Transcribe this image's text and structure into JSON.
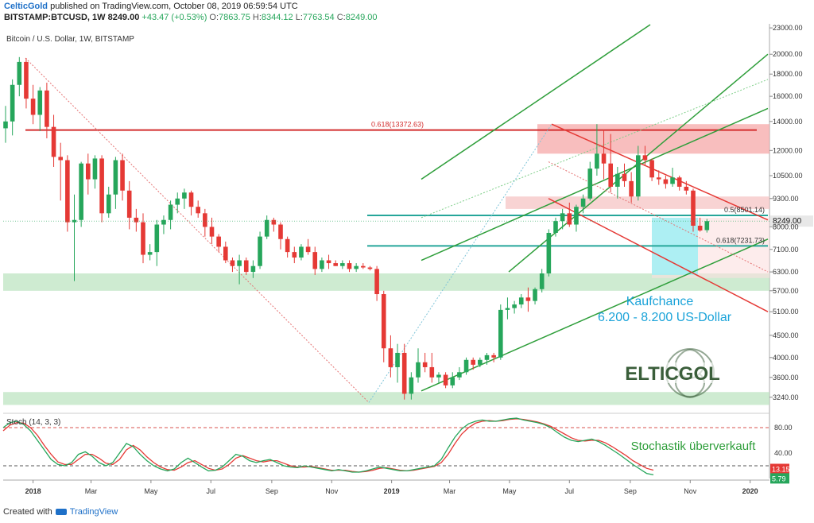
{
  "header": {
    "author": "CelticGold",
    "published": "published on TradingView.com, October 08, 2019 06:59:54 UTC",
    "symbol": "BITSTAMP:BTCUSD, 1W",
    "price": "8249.00",
    "change": "+43.47 (+0.53%)",
    "o_label": "O:",
    "o": "7863.75",
    "h_label": "H:",
    "h": "8344.12",
    "l_label": "L:",
    "l": "7763.54",
    "c_label": "C:",
    "c": "8249.00"
  },
  "chart_data": {
    "type": "candlestick",
    "title": "Bitcoin / U.S. Dollar, 1W, BITSTAMP",
    "y_scale": "log",
    "ylim": [
      3000,
      23500
    ],
    "y_ticks": [
      3240,
      3600,
      4000,
      4500,
      5100,
      5700,
      6300,
      7100,
      8000,
      9300,
      10500,
      12000,
      14000,
      16000,
      18000,
      20000,
      23000
    ],
    "y_tick_labels": [
      "3240.00",
      "3600.00",
      "4000.00",
      "4500.00",
      "5100.00",
      "5700.00",
      "6300.00",
      "7100.00",
      "8000.00",
      "9300.00",
      "10500.00",
      "12000.00",
      "14000.00",
      "16000.00",
      "18000.00",
      "20000.00",
      "23000.00"
    ],
    "x_labels": [
      "2018",
      "Mar",
      "May",
      "Jul",
      "Sep",
      "Nov",
      "2019",
      "Mar",
      "May",
      "Jul",
      "Sep",
      "Nov",
      "2020"
    ],
    "x_label_dates": [
      "2018-01-01",
      "2018-03-01",
      "2018-05-01",
      "2018-07-01",
      "2018-09-01",
      "2018-11-01",
      "2019-01-01",
      "2019-03-01",
      "2019-05-01",
      "2019-07-01",
      "2019-09-01",
      "2019-11-01",
      "2020-01-01"
    ],
    "candles": [
      [
        13500,
        15200,
        12500,
        14000
      ],
      [
        14000,
        17500,
        13000,
        17000
      ],
      [
        17000,
        19700,
        16000,
        19200
      ],
      [
        19200,
        19600,
        15000,
        15800
      ],
      [
        15800,
        17000,
        13800,
        14500
      ],
      [
        14500,
        16800,
        13300,
        16500
      ],
      [
        16500,
        17200,
        12800,
        13600
      ],
      [
        13600,
        14500,
        11000,
        11600
      ],
      [
        11600,
        12500,
        9200,
        11400
      ],
      [
        11400,
        11700,
        7800,
        8200
      ],
      [
        8200,
        9500,
        6000,
        8300
      ],
      [
        8300,
        11300,
        8000,
        11200
      ],
      [
        11200,
        11800,
        9500,
        10300
      ],
      [
        10300,
        11700,
        9800,
        11500
      ],
      [
        11500,
        11700,
        8200,
        8600
      ],
      [
        8600,
        9900,
        8400,
        9500
      ],
      [
        9500,
        11600,
        8800,
        11400
      ],
      [
        11400,
        11800,
        9200,
        9700
      ],
      [
        9700,
        10200,
        7900,
        8400
      ],
      [
        8400,
        8800,
        7800,
        8200
      ],
      [
        8200,
        8600,
        6600,
        6900
      ],
      [
        6900,
        7300,
        6700,
        7000
      ],
      [
        7000,
        8300,
        6500,
        8100
      ],
      [
        8100,
        8500,
        7700,
        8300
      ],
      [
        8300,
        9200,
        7900,
        9000
      ],
      [
        9000,
        9600,
        8600,
        9300
      ],
      [
        9300,
        9800,
        8800,
        9600
      ],
      [
        9600,
        9700,
        8500,
        8900
      ],
      [
        8900,
        9200,
        8400,
        8600
      ],
      [
        8600,
        8800,
        7600,
        8000
      ],
      [
        8000,
        8400,
        7300,
        7600
      ],
      [
        7600,
        7700,
        7000,
        7200
      ],
      [
        7200,
        7400,
        6600,
        6700
      ],
      [
        6700,
        6800,
        6300,
        6500
      ],
      [
        6500,
        6900,
        5900,
        6700
      ],
      [
        6700,
        6800,
        6200,
        6300
      ],
      [
        6300,
        6700,
        6100,
        6500
      ],
      [
        6500,
        7800,
        6400,
        7600
      ],
      [
        7600,
        8500,
        7500,
        8300
      ],
      [
        8300,
        8400,
        7800,
        8100
      ],
      [
        8100,
        8200,
        7100,
        7500
      ],
      [
        7500,
        7600,
        6800,
        7000
      ],
      [
        7000,
        7200,
        6600,
        6800
      ],
      [
        6800,
        7300,
        6700,
        7200
      ],
      [
        7200,
        7500,
        6900,
        7000
      ],
      [
        7000,
        7200,
        6200,
        6400
      ],
      [
        6400,
        6800,
        6300,
        6700
      ],
      [
        6700,
        6900,
        6400,
        6600
      ],
      [
        6600,
        6700,
        6500,
        6500
      ],
      [
        6500,
        6700,
        6400,
        6600
      ],
      [
        6600,
        6700,
        6300,
        6400
      ],
      [
        6400,
        6600,
        6300,
        6500
      ],
      [
        6500,
        6600,
        6400,
        6450
      ],
      [
        6450,
        6500,
        6350,
        6400
      ],
      [
        6400,
        6500,
        5400,
        5600
      ],
      [
        5600,
        5700,
        3900,
        4200
      ],
      [
        4200,
        4500,
        3600,
        3800
      ],
      [
        3800,
        4300,
        3500,
        4100
      ],
      [
        4100,
        4300,
        3200,
        3300
      ],
      [
        3300,
        3700,
        3200,
        3600
      ],
      [
        3600,
        4200,
        3500,
        3900
      ],
      [
        3900,
        4100,
        3700,
        3800
      ],
      [
        3800,
        4100,
        3500,
        3600
      ],
      [
        3600,
        3700,
        3500,
        3650
      ],
      [
        3650,
        3700,
        3400,
        3450
      ],
      [
        3450,
        3700,
        3400,
        3600
      ],
      [
        3600,
        3800,
        3550,
        3700
      ],
      [
        3700,
        4000,
        3650,
        3950
      ],
      [
        3950,
        4000,
        3750,
        3850
      ],
      [
        3850,
        4000,
        3800,
        3950
      ],
      [
        3950,
        4100,
        3850,
        4050
      ],
      [
        4050,
        4100,
        3900,
        4000
      ],
      [
        4000,
        5300,
        3950,
        5150
      ],
      [
        5150,
        5500,
        4900,
        5200
      ],
      [
        5200,
        5400,
        5050,
        5300
      ],
      [
        5300,
        5600,
        5200,
        5500
      ],
      [
        5500,
        5800,
        5100,
        5400
      ],
      [
        5400,
        5800,
        5300,
        5750
      ],
      [
        5750,
        6400,
        5650,
        6250
      ],
      [
        6250,
        7900,
        6150,
        7750
      ],
      [
        7750,
        8400,
        7600,
        8250
      ],
      [
        8250,
        8800,
        7900,
        8600
      ],
      [
        8600,
        9100,
        8000,
        8100
      ],
      [
        8100,
        9000,
        7800,
        8900
      ],
      [
        8900,
        9500,
        8600,
        9300
      ],
      [
        9300,
        11300,
        9200,
        10900
      ],
      [
        10900,
        13800,
        10500,
        11800
      ],
      [
        11800,
        13400,
        10300,
        11200
      ],
      [
        11200,
        13100,
        9600,
        9900
      ],
      [
        9900,
        11000,
        9300,
        10600
      ],
      [
        10600,
        11200,
        9900,
        10200
      ],
      [
        10200,
        10700,
        9100,
        9400
      ],
      [
        9400,
        12300,
        9200,
        11700
      ],
      [
        11700,
        12300,
        11100,
        11400
      ],
      [
        11400,
        11500,
        10200,
        10400
      ],
      [
        10400,
        10800,
        10000,
        10300
      ],
      [
        10300,
        10500,
        9800,
        10050
      ],
      [
        10050,
        10950,
        9900,
        10400
      ],
      [
        10400,
        10500,
        9700,
        9900
      ],
      [
        9900,
        10200,
        9500,
        9700
      ],
      [
        9700,
        9800,
        7800,
        8050
      ],
      [
        8050,
        8400,
        7800,
        7850
      ],
      [
        7863.75,
        8344.12,
        7763.54,
        8249
      ]
    ],
    "fib_levels": [
      {
        "label": "0.618(13372.63)",
        "value": 13372.63
      },
      {
        "label": "0.5(8501.14)",
        "value": 8501.14
      },
      {
        "label": "0.618(7231.73)",
        "value": 7231.73
      }
    ],
    "current_price_label": "8249.00",
    "annotation_title": "Kaufchance",
    "annotation_range": "6.200 - 8.200 US-Dollar",
    "stoch": {
      "title": "Stoch (14, 3, 3)",
      "ylim": [
        0,
        100
      ],
      "y_ticks": [
        80,
        40
      ],
      "y_tick_labels": [
        "80.00",
        "40.00"
      ],
      "levels": [
        80,
        20
      ],
      "k_value_label": "5.79",
      "d_value_label": "13.15",
      "annotation": "Stochastik überverkauft",
      "k": [
        80,
        88,
        90,
        85,
        75,
        60,
        45,
        30,
        22,
        20,
        25,
        38,
        42,
        35,
        25,
        20,
        25,
        40,
        55,
        50,
        38,
        28,
        20,
        15,
        12,
        15,
        25,
        32,
        25,
        18,
        12,
        13,
        18,
        28,
        38,
        35,
        28,
        25,
        28,
        30,
        25,
        20,
        18,
        17,
        20,
        18,
        16,
        14,
        12,
        14,
        12,
        10,
        10,
        12,
        15,
        18,
        16,
        14,
        12,
        12,
        14,
        16,
        18,
        20,
        30,
        48,
        65,
        78,
        86,
        90,
        92,
        90,
        90,
        92,
        94,
        95,
        92,
        90,
        88,
        85,
        80,
        72,
        65,
        60,
        58,
        60,
        62,
        58,
        52,
        45,
        38,
        30,
        22,
        15,
        8,
        5.79
      ],
      "d": [
        75,
        84,
        88,
        87,
        80,
        68,
        52,
        38,
        26,
        22,
        22,
        30,
        38,
        38,
        32,
        24,
        22,
        30,
        45,
        52,
        45,
        34,
        25,
        18,
        14,
        13,
        18,
        25,
        28,
        22,
        16,
        13,
        15,
        22,
        32,
        36,
        32,
        28,
        26,
        28,
        28,
        24,
        20,
        18,
        18,
        19,
        17,
        15,
        13,
        13,
        13,
        11,
        10,
        11,
        13,
        16,
        17,
        15,
        13,
        12,
        13,
        15,
        17,
        19,
        25,
        38,
        55,
        70,
        80,
        87,
        90,
        91,
        90,
        91,
        93,
        94,
        93,
        91,
        89,
        86,
        82,
        76,
        70,
        64,
        60,
        59,
        60,
        60,
        56,
        50,
        43,
        36,
        28,
        22,
        16,
        13.15
      ]
    }
  },
  "logo": {
    "text": "CELTICGOLD"
  },
  "footer": {
    "created": "Created with",
    "tv": "TradingView"
  },
  "colors": {
    "up": "#26a65b",
    "down": "#e53935",
    "fib": "#d32f2f",
    "fib_teal": "#26a69a",
    "channel": "#2e9e3a",
    "accent": "#00b3d6"
  }
}
